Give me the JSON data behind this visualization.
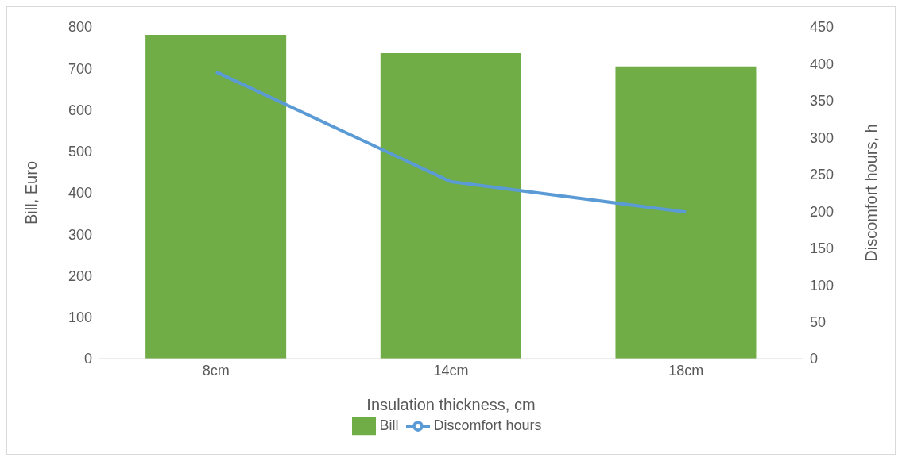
{
  "chart_data": {
    "type": "bar",
    "xlabel": "Insulation thickness, cm",
    "ylabel": "Bill, Euro",
    "y2label": "Discomfort hours, h",
    "categories": [
      "8cm",
      "14cm",
      "18cm"
    ],
    "series": [
      {
        "name": "Bill",
        "color": "#70ad47",
        "values": [
          781,
          737,
          705
        ]
      },
      {
        "name": "Discomfort hours",
        "type": "line",
        "axis": "y2",
        "color": "#5b9bd5",
        "values": [
          389,
          240,
          199
        ]
      }
    ],
    "ylim": [
      0,
      800
    ],
    "yticks": [
      0,
      100,
      200,
      300,
      400,
      500,
      600,
      700,
      800
    ],
    "y2lim": [
      0,
      450
    ],
    "y2ticks": [
      0,
      50,
      100,
      150,
      200,
      250,
      300,
      350,
      400,
      450
    ],
    "grid": false,
    "legend": "bottom",
    "marker": "none"
  }
}
